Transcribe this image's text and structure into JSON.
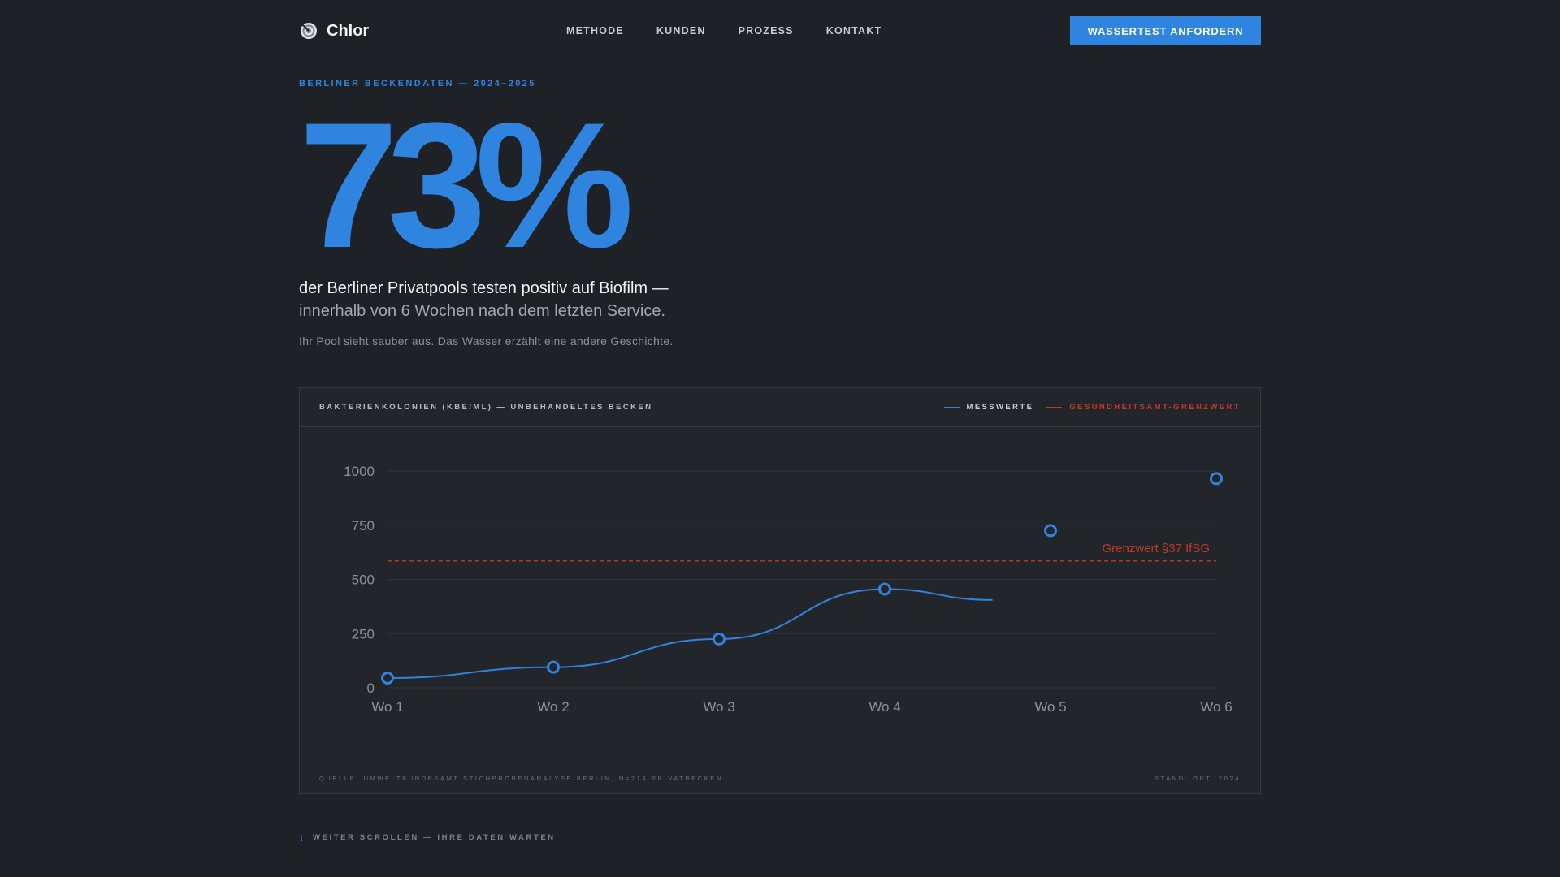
{
  "brand": {
    "name": "Chlor",
    "icon": "chlor-logo-icon"
  },
  "nav": [
    {
      "label": "METHODE"
    },
    {
      "label": "KUNDEN"
    },
    {
      "label": "PROZESS"
    },
    {
      "label": "KONTAKT"
    }
  ],
  "cta_label": "WASSERTEST ANFORDERN",
  "hero": {
    "eyebrow": "BERLINER BECKENDATEN — 2024–2025",
    "stat": "73%",
    "lead_line1": "der Berliner Privatpools testen positiv auf Biofilm —",
    "lead_line2": "innerhalb von 6 Wochen nach dem letzten Service.",
    "sub": "Ihr Pool sieht sauber aus. Das Wasser erzählt eine andere Geschichte."
  },
  "chart_card": {
    "title": "BAKTERIENKOLONIEN (KBE/ML) — UNBEHANDELTES BECKEN",
    "legend_measured": "MESSWERTE",
    "legend_limit": "GESUNDHEITSAMT-GRENZWERT",
    "source": "QUELLE: UMWELTBUNDESAMT STICHPROBENANALYSE BERLIN, N=214 PRIVATBECKEN",
    "stand": "STAND: OKT. 2024"
  },
  "chart_data": {
    "type": "line",
    "categories": [
      "Wo 1",
      "Wo 2",
      "Wo 3",
      "Wo 4",
      "Wo 5",
      "Wo 6"
    ],
    "series": [
      {
        "name": "MESSWERTE",
        "values": [
          45,
          95,
          225,
          455,
          725,
          965
        ],
        "color": "#2f84e0"
      }
    ],
    "line_drawn_to": 3.65,
    "line_end_value": 405,
    "reference_line": {
      "label": "Grenzwert §37 IfSG",
      "value": 585,
      "color": "#c0392b"
    },
    "yticks": [
      0,
      250,
      500,
      750,
      1000
    ],
    "ylim": [
      0,
      1000
    ],
    "grid": true
  },
  "scroll_hint": {
    "label": "WEITER SCROLLEN — IHRE DATEN WARTEN",
    "icon": "arrow-down-icon"
  },
  "colors": {
    "accent": "#2f84e0",
    "limit": "#c0392b",
    "background": "#1e2126"
  }
}
